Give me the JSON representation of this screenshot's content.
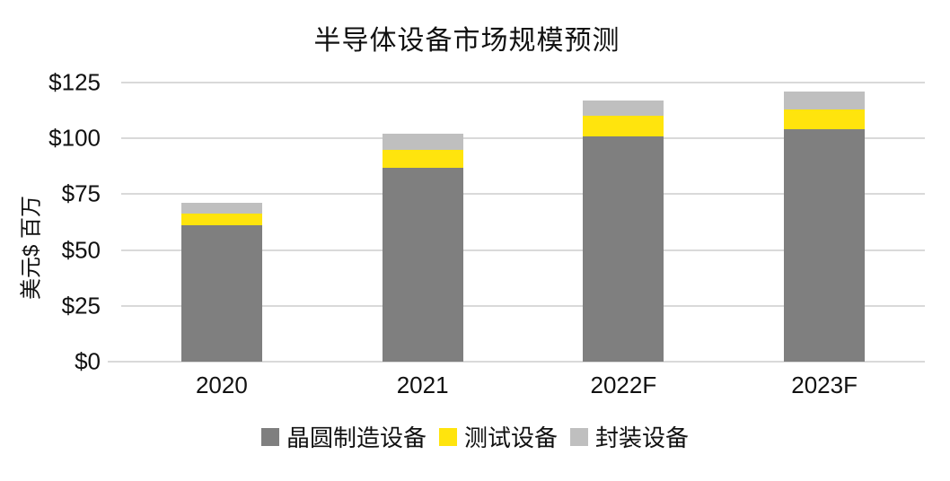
{
  "chart_data": {
    "type": "bar",
    "stacked": true,
    "title": "半导体设备市场规模预测",
    "ylabel": "美元$ 百万",
    "xlabel": "",
    "categories": [
      "2020",
      "2021",
      "2022F",
      "2023F"
    ],
    "series": [
      {
        "name": "晶圆制造设备",
        "color": "#7f7f7f",
        "values": [
          61,
          87,
          101,
          104
        ]
      },
      {
        "name": "测试设备",
        "color": "#ffe40d",
        "values": [
          5.5,
          8,
          9,
          9
        ]
      },
      {
        "name": "封装设备",
        "color": "#bfbfbf",
        "values": [
          4.5,
          7,
          7,
          8
        ]
      }
    ],
    "ylim": [
      0,
      125
    ],
    "ytick_values": [
      0,
      25,
      50,
      75,
      100,
      125
    ],
    "ytick_labels": [
      "$0",
      "$25",
      "$50",
      "$75",
      "$100",
      "$125"
    ],
    "grid": true,
    "legend_position": "bottom",
    "colors": {
      "background": "#ffffff",
      "gridline": "#d9d9d9",
      "text": "#111111"
    }
  }
}
